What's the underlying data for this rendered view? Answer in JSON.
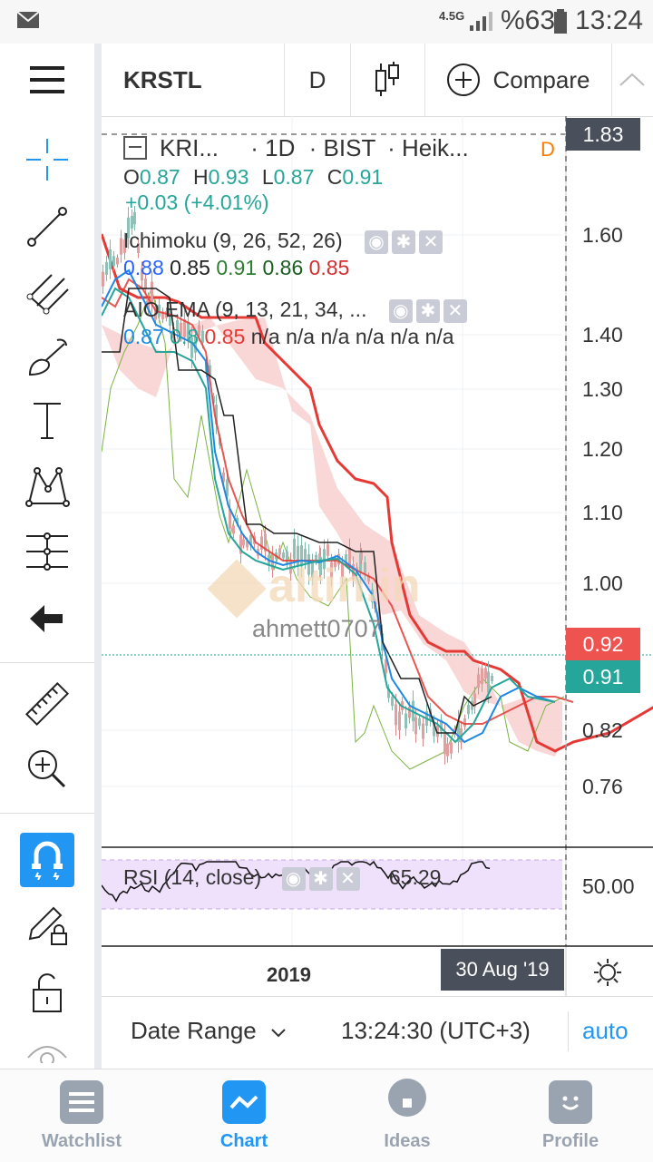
{
  "status_bar": {
    "network": "4.5G",
    "battery": "%63",
    "time": "13:24"
  },
  "toolbar": {
    "symbol": "KRSTL",
    "interval": "D",
    "compare_label": "Compare"
  },
  "legend": {
    "symbol": "KRI...",
    "interval": "1D",
    "exchange": "BIST",
    "chart_type": "Heik...",
    "flag": "D",
    "o_label": "O",
    "o_value": "0.87",
    "h_label": "H",
    "h_value": "0.93",
    "l_label": "L",
    "l_value": "0.87",
    "c_label": "C",
    "c_value": "0.91",
    "change": "+0.03 (+4.01%)"
  },
  "indicators": {
    "ichimoku": {
      "name": "Ichimoku (9, 26, 52, 26)",
      "values": [
        "0.88",
        "0.85",
        "0.91",
        "0.86",
        "0.85"
      ],
      "colors": [
        "#2962ff",
        "#222222",
        "#2e7d32",
        "#1b5e20",
        "#d32f2f"
      ]
    },
    "aio_ema": {
      "name": "AIO EMA (9, 13, 21, 34, ...",
      "values": [
        "0.87",
        "0.8",
        "0.85",
        "n/a",
        "n/a",
        "n/a",
        "n/a",
        "n/a",
        "n/a"
      ]
    },
    "rsi": {
      "name": "RSI (14, close)",
      "value": "65.29",
      "level_label": "50.00"
    }
  },
  "watermark": {
    "brand": "altin.in",
    "user": "ahmett0707"
  },
  "price_axis": {
    "labels": [
      "1.60",
      "1.40",
      "1.30",
      "1.20",
      "1.10",
      "1.00",
      "0.82",
      "0.76"
    ],
    "crosshair_price": "1.83",
    "tag_red": "0.92",
    "tag_green": "0.91"
  },
  "time_axis": {
    "year_label": "2019",
    "crosshair_date": "30 Aug '19"
  },
  "range_bar": {
    "date_range_label": "Date Range",
    "clock": "13:24:30 (UTC+3)",
    "auto_label": "auto"
  },
  "bottom_nav": {
    "items": [
      {
        "label": "Watchlist"
      },
      {
        "label": "Chart"
      },
      {
        "label": "Ideas"
      },
      {
        "label": "Profile"
      }
    ],
    "active_color": "#2196f3",
    "inactive_color": "#9aa4b0"
  },
  "colors": {
    "ema_red": "#e53935",
    "ema_blue": "#1e88e5",
    "cloud_fill": "#f8c9c9",
    "rsi_band": "#efe0fb",
    "tag_red": "#ef5350",
    "tag_green": "#26a69a",
    "crosshair_tag": "#4a4f5c"
  }
}
